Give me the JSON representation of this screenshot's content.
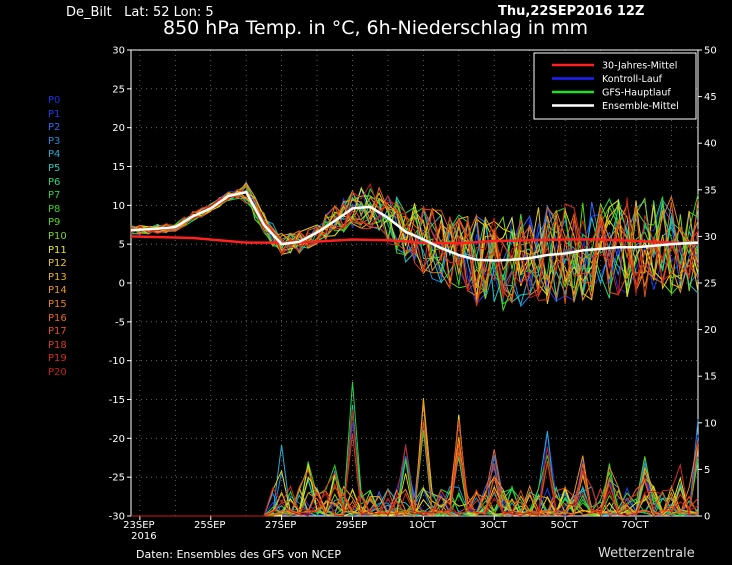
{
  "header": {
    "station": "De_Bilt   Lat: 52 Lon: 5",
    "datetime": "Thu,22SEP2016 12Z",
    "title": "850 hPa Temp. in °C, 6h-Niederschlag in mm"
  },
  "footer": {
    "source": "Daten: Ensembles des GFS von NCEP",
    "brand": "Wetterzentrale"
  },
  "members": [
    {
      "label": "P0",
      "color": "#1a2ee6"
    },
    {
      "label": "P1",
      "color": "#1a3cf0"
    },
    {
      "label": "P2",
      "color": "#2a6bf5"
    },
    {
      "label": "P3",
      "color": "#1e8ce0"
    },
    {
      "label": "P4",
      "color": "#1fb0d6"
    },
    {
      "label": "P5",
      "color": "#1fc8c0"
    },
    {
      "label": "P6",
      "color": "#22d67a"
    },
    {
      "label": "P7",
      "color": "#22d640"
    },
    {
      "label": "P8",
      "color": "#34d11c"
    },
    {
      "label": "P9",
      "color": "#52d41c"
    },
    {
      "label": "P10",
      "color": "#7cd41c"
    },
    {
      "label": "P11",
      "color": "#e6e61c"
    },
    {
      "label": "P12",
      "color": "#e8c81c"
    },
    {
      "label": "P13",
      "color": "#eab21c"
    },
    {
      "label": "P14",
      "color": "#ec961c"
    },
    {
      "label": "P15",
      "color": "#ec801c"
    },
    {
      "label": "P16",
      "color": "#ea641c"
    },
    {
      "label": "P17",
      "color": "#e6501c"
    },
    {
      "label": "P18",
      "color": "#dc3a1c"
    },
    {
      "label": "P19",
      "color": "#d62a1c"
    },
    {
      "label": "P20",
      "color": "#c81c1c"
    }
  ],
  "chart_data": {
    "type": "line",
    "x_unit": "days since 23SEP2016 00Z",
    "x_ticks": [
      {
        "x": 0,
        "label": "23SEP",
        "sub": "2016"
      },
      {
        "x": 2,
        "label": "25SEP"
      },
      {
        "x": 4,
        "label": "27SEP"
      },
      {
        "x": 6,
        "label": "29SEP"
      },
      {
        "x": 8,
        "label": "1OCT"
      },
      {
        "x": 10,
        "label": "3OCT"
      },
      {
        "x": 12,
        "label": "5OCT"
      },
      {
        "x": 14,
        "label": "7OCT"
      }
    ],
    "xlim": [
      -0.25,
      15.75
    ],
    "ylim_left": [
      -30,
      30
    ],
    "yticks_left": [
      30,
      25,
      20,
      15,
      10,
      5,
      0,
      -5,
      -10,
      -15,
      -20,
      -25,
      -30
    ],
    "ylim_right": [
      0,
      50
    ],
    "yticks_right": [
      50,
      45,
      40,
      35,
      30,
      25,
      20,
      15,
      10,
      5,
      0
    ],
    "ylabel": "",
    "grid": true,
    "legend_position": "top-right",
    "legend": [
      {
        "name": "30-Jahres-Mittel",
        "color": "#ff2020"
      },
      {
        "name": "Kontroll-Lauf",
        "color": "#2020ff"
      },
      {
        "name": "GFS-Hauptlauf",
        "color": "#20e020"
      },
      {
        "name": "Ensemble-Mittel",
        "color": "#ffffff"
      }
    ],
    "climatology": {
      "x": [
        -0.25,
        1.5,
        3,
        4.5,
        6,
        7,
        8,
        9,
        10,
        11,
        12,
        13,
        14,
        15,
        15.75
      ],
      "y": [
        6.0,
        5.8,
        5.2,
        5.2,
        5.6,
        5.5,
        5.2,
        5.1,
        5.4,
        5.5,
        5.6,
        5.6,
        5.4,
        5.2,
        5.1
      ]
    },
    "ensemble_mean": {
      "x": [
        -0.25,
        0.5,
        1,
        1.5,
        2,
        2.5,
        3,
        3.5,
        4,
        4.5,
        5,
        5.5,
        6,
        6.5,
        7,
        7.5,
        8,
        8.5,
        9,
        9.5,
        10,
        10.5,
        11,
        11.5,
        12,
        12.5,
        13,
        13.5,
        14,
        14.5,
        15,
        15.75
      ],
      "y": [
        6.8,
        7.0,
        7.2,
        8.6,
        9.6,
        11.2,
        11.7,
        7.5,
        5.0,
        5.3,
        6.5,
        8.0,
        9.6,
        9.8,
        8.4,
        6.6,
        5.6,
        4.5,
        3.6,
        3.0,
        2.9,
        3.0,
        3.2,
        3.6,
        3.8,
        4.2,
        4.4,
        4.6,
        4.6,
        4.8,
        5.0,
        5.2
      ]
    },
    "precip_peaks": [
      {
        "x": 4.0,
        "mm": 8.5
      },
      {
        "x": 4.7,
        "mm": 6.0
      },
      {
        "x": 5.5,
        "mm": 5.5
      },
      {
        "x": 6.1,
        "mm": 15.0
      },
      {
        "x": 7.4,
        "mm": 8.0
      },
      {
        "x": 8.0,
        "mm": 14.5
      },
      {
        "x": 9.0,
        "mm": 11.0
      },
      {
        "x": 10.1,
        "mm": 7.5
      },
      {
        "x": 11.5,
        "mm": 10.0
      },
      {
        "x": 12.4,
        "mm": 7.0
      },
      {
        "x": 13.2,
        "mm": 6.0
      },
      {
        "x": 14.3,
        "mm": 6.5
      },
      {
        "x": 15.3,
        "mm": 5.5
      },
      {
        "x": 15.7,
        "mm": 10.5
      }
    ]
  }
}
